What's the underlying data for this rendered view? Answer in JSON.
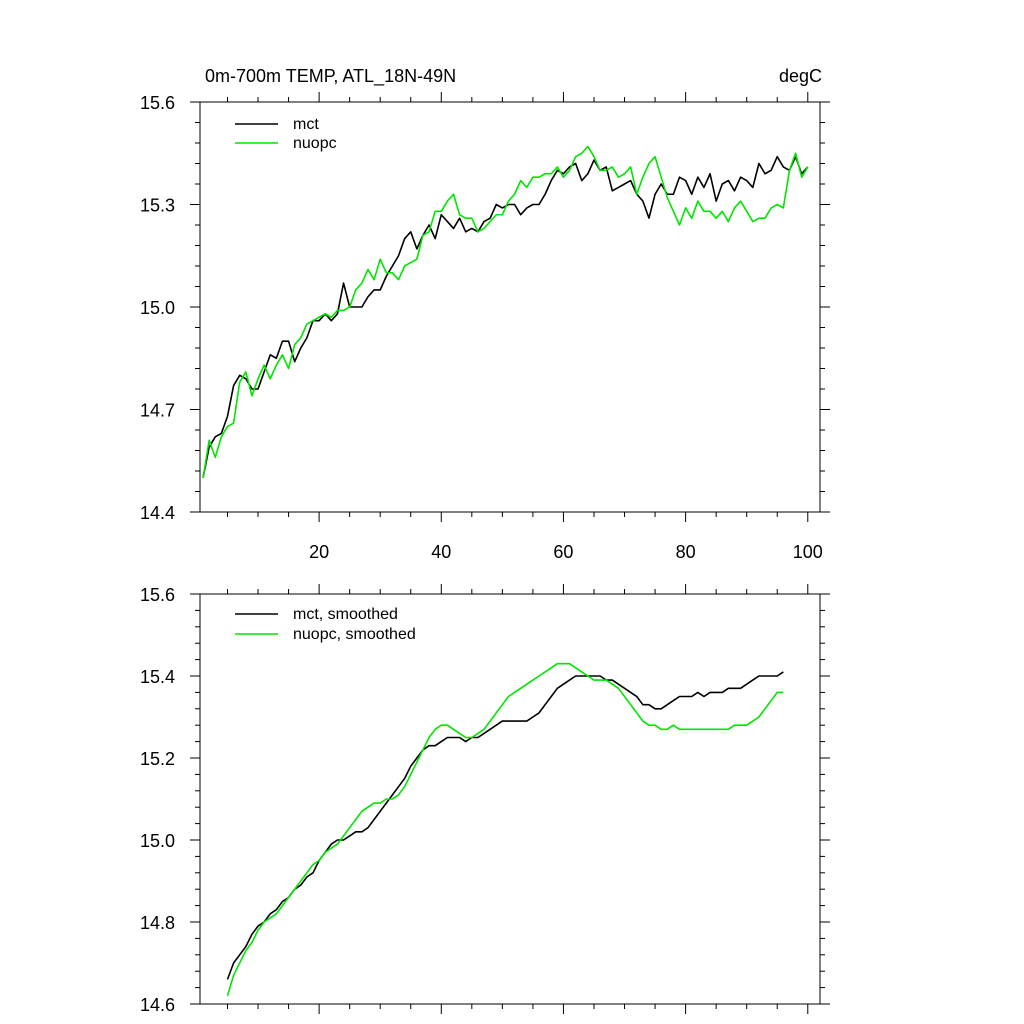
{
  "chart_data": [
    {
      "type": "line",
      "title": "0m-700m TEMP, ATL_18N-49N",
      "units": "degC",
      "xlabel": "",
      "ylabel": "",
      "xlim": [
        0.5,
        102
      ],
      "ylim": [
        14.4,
        15.6
      ],
      "xticks": [
        20,
        40,
        60,
        80,
        100
      ],
      "yticks": [
        14.4,
        14.7,
        15.0,
        15.3,
        15.6
      ],
      "ytick_labels": [
        "14.4",
        "14.7",
        "15.0",
        "15.3",
        "15.6"
      ],
      "legend_position": "top-left",
      "series": [
        {
          "name": "mct",
          "color": "#000000",
          "x": [
            1,
            2,
            3,
            4,
            5,
            6,
            7,
            8,
            9,
            10,
            11,
            12,
            13,
            14,
            15,
            16,
            17,
            18,
            19,
            20,
            21,
            22,
            23,
            24,
            25,
            26,
            27,
            28,
            29,
            30,
            31,
            32,
            33,
            34,
            35,
            36,
            37,
            38,
            39,
            40,
            41,
            42,
            43,
            44,
            45,
            46,
            47,
            48,
            49,
            50,
            51,
            52,
            53,
            54,
            55,
            56,
            57,
            58,
            59,
            60,
            61,
            62,
            63,
            64,
            65,
            66,
            67,
            68,
            69,
            70,
            71,
            72,
            73,
            74,
            75,
            76,
            77,
            78,
            79,
            80,
            81,
            82,
            83,
            84,
            85,
            86,
            87,
            88,
            89,
            90,
            91,
            92,
            93,
            94,
            95,
            96,
            97,
            98,
            99,
            100
          ],
          "values": [
            14.5,
            14.59,
            14.62,
            14.63,
            14.68,
            14.77,
            14.8,
            14.79,
            14.76,
            14.76,
            14.81,
            14.86,
            14.85,
            14.9,
            14.9,
            14.84,
            14.88,
            14.91,
            14.96,
            14.96,
            14.98,
            14.96,
            14.98,
            15.07,
            15.0,
            15.0,
            15.0,
            15.03,
            15.05,
            15.05,
            15.09,
            15.12,
            15.15,
            15.2,
            15.22,
            15.17,
            15.21,
            15.24,
            15.2,
            15.27,
            15.25,
            15.23,
            15.26,
            15.22,
            15.23,
            15.22,
            15.25,
            15.26,
            15.3,
            15.29,
            15.3,
            15.3,
            15.27,
            15.29,
            15.3,
            15.3,
            15.33,
            15.37,
            15.4,
            15.39,
            15.41,
            15.42,
            15.37,
            15.39,
            15.43,
            15.4,
            15.41,
            15.34,
            15.35,
            15.36,
            15.37,
            15.33,
            15.31,
            15.26,
            15.33,
            15.36,
            15.33,
            15.33,
            15.38,
            15.37,
            15.33,
            15.38,
            15.35,
            15.39,
            15.31,
            15.36,
            15.37,
            15.34,
            15.38,
            15.37,
            15.35,
            15.42,
            15.39,
            15.4,
            15.44,
            15.41,
            15.4,
            15.44,
            15.39,
            15.41
          ]
        },
        {
          "name": "nuopc",
          "color": "#00e600",
          "x": [
            1,
            2,
            3,
            4,
            5,
            6,
            7,
            8,
            9,
            10,
            11,
            12,
            13,
            14,
            15,
            16,
            17,
            18,
            19,
            20,
            21,
            22,
            23,
            24,
            25,
            26,
            27,
            28,
            29,
            30,
            31,
            32,
            33,
            34,
            35,
            36,
            37,
            38,
            39,
            40,
            41,
            42,
            43,
            44,
            45,
            46,
            47,
            48,
            49,
            50,
            51,
            52,
            53,
            54,
            55,
            56,
            57,
            58,
            59,
            60,
            61,
            62,
            63,
            64,
            65,
            66,
            67,
            68,
            69,
            70,
            71,
            72,
            73,
            74,
            75,
            76,
            77,
            78,
            79,
            80,
            81,
            82,
            83,
            84,
            85,
            86,
            87,
            88,
            89,
            90,
            91,
            92,
            93,
            94,
            95,
            96,
            97,
            98,
            99,
            100
          ],
          "values": [
            14.5,
            14.61,
            14.56,
            14.62,
            14.65,
            14.66,
            14.78,
            14.81,
            14.74,
            14.79,
            14.83,
            14.79,
            14.83,
            14.86,
            14.82,
            14.89,
            14.91,
            14.95,
            14.96,
            14.97,
            14.98,
            14.97,
            14.99,
            14.99,
            15.0,
            15.05,
            15.07,
            15.11,
            15.08,
            15.14,
            15.1,
            15.1,
            15.08,
            15.12,
            15.13,
            15.14,
            15.21,
            15.22,
            15.28,
            15.28,
            15.31,
            15.33,
            15.27,
            15.26,
            15.26,
            15.22,
            15.23,
            15.25,
            15.27,
            15.27,
            15.31,
            15.33,
            15.37,
            15.35,
            15.38,
            15.38,
            15.39,
            15.39,
            15.41,
            15.38,
            15.4,
            15.44,
            15.45,
            15.47,
            15.44,
            15.4,
            15.4,
            15.41,
            15.38,
            15.39,
            15.41,
            15.33,
            15.38,
            15.42,
            15.44,
            15.38,
            15.32,
            15.28,
            15.24,
            15.29,
            15.26,
            15.31,
            15.28,
            15.28,
            15.26,
            15.28,
            15.25,
            15.29,
            15.31,
            15.28,
            15.25,
            15.26,
            15.26,
            15.29,
            15.3,
            15.29,
            15.4,
            15.45,
            15.38,
            15.41
          ]
        }
      ]
    },
    {
      "type": "line",
      "title": "",
      "xlabel": "",
      "ylabel": "",
      "xlim": [
        0.5,
        102
      ],
      "ylim": [
        14.6,
        15.6
      ],
      "xticks": [
        20,
        40,
        60,
        80,
        100
      ],
      "yticks": [
        14.6,
        14.8,
        15.0,
        15.2,
        15.4,
        15.6
      ],
      "ytick_labels": [
        "14.6",
        "14.8",
        "15.0",
        "15.2",
        "15.4",
        "15.6"
      ],
      "legend_position": "top-left",
      "series": [
        {
          "name": "mct, smoothed",
          "color": "#000000",
          "x": [
            5,
            6,
            7,
            8,
            9,
            10,
            11,
            12,
            13,
            14,
            15,
            16,
            17,
            18,
            19,
            20,
            21,
            22,
            23,
            24,
            25,
            26,
            27,
            28,
            29,
            30,
            31,
            32,
            33,
            34,
            35,
            36,
            37,
            38,
            39,
            40,
            41,
            42,
            43,
            44,
            45,
            46,
            47,
            48,
            49,
            50,
            51,
            52,
            53,
            54,
            55,
            56,
            57,
            58,
            59,
            60,
            61,
            62,
            63,
            64,
            65,
            66,
            67,
            68,
            69,
            70,
            71,
            72,
            73,
            74,
            75,
            76,
            77,
            78,
            79,
            80,
            81,
            82,
            83,
            84,
            85,
            86,
            87,
            88,
            89,
            90,
            91,
            92,
            93,
            94,
            95,
            96
          ],
          "values": [
            14.66,
            14.7,
            14.72,
            14.74,
            14.77,
            14.79,
            14.8,
            14.82,
            14.83,
            14.85,
            14.86,
            14.88,
            14.89,
            14.91,
            14.92,
            14.95,
            14.97,
            14.99,
            15.0,
            15.0,
            15.01,
            15.02,
            15.02,
            15.03,
            15.05,
            15.07,
            15.09,
            15.11,
            15.13,
            15.15,
            15.18,
            15.2,
            15.22,
            15.23,
            15.23,
            15.24,
            15.25,
            15.25,
            15.25,
            15.24,
            15.25,
            15.25,
            15.26,
            15.27,
            15.28,
            15.29,
            15.29,
            15.29,
            15.29,
            15.29,
            15.3,
            15.31,
            15.33,
            15.35,
            15.37,
            15.38,
            15.39,
            15.4,
            15.4,
            15.4,
            15.4,
            15.4,
            15.39,
            15.39,
            15.38,
            15.37,
            15.36,
            15.35,
            15.33,
            15.33,
            15.32,
            15.32,
            15.33,
            15.34,
            15.35,
            15.35,
            15.35,
            15.36,
            15.35,
            15.36,
            15.36,
            15.36,
            15.37,
            15.37,
            15.37,
            15.38,
            15.39,
            15.4,
            15.4,
            15.4,
            15.4,
            15.41
          ]
        },
        {
          "name": "nuopc, smoothed",
          "color": "#00e600",
          "x": [
            5,
            6,
            7,
            8,
            9,
            10,
            11,
            12,
            13,
            14,
            15,
            16,
            17,
            18,
            19,
            20,
            21,
            22,
            23,
            24,
            25,
            26,
            27,
            28,
            29,
            30,
            31,
            32,
            33,
            34,
            35,
            36,
            37,
            38,
            39,
            40,
            41,
            42,
            43,
            44,
            45,
            46,
            47,
            48,
            49,
            50,
            51,
            52,
            53,
            54,
            55,
            56,
            57,
            58,
            59,
            60,
            61,
            62,
            63,
            64,
            65,
            66,
            67,
            68,
            69,
            70,
            71,
            72,
            73,
            74,
            75,
            76,
            77,
            78,
            79,
            80,
            81,
            82,
            83,
            84,
            85,
            86,
            87,
            88,
            89,
            90,
            91,
            92,
            93,
            94,
            95,
            96
          ],
          "values": [
            14.62,
            14.67,
            14.7,
            14.73,
            14.75,
            14.78,
            14.8,
            14.81,
            14.82,
            14.84,
            14.86,
            14.88,
            14.9,
            14.92,
            14.94,
            14.95,
            14.97,
            14.98,
            14.99,
            15.01,
            15.03,
            15.05,
            15.07,
            15.08,
            15.09,
            15.09,
            15.1,
            15.1,
            15.11,
            15.13,
            15.16,
            15.19,
            15.22,
            15.25,
            15.27,
            15.28,
            15.28,
            15.27,
            15.26,
            15.25,
            15.25,
            15.26,
            15.27,
            15.29,
            15.31,
            15.33,
            15.35,
            15.36,
            15.37,
            15.38,
            15.39,
            15.4,
            15.41,
            15.42,
            15.43,
            15.43,
            15.43,
            15.42,
            15.41,
            15.4,
            15.39,
            15.39,
            15.39,
            15.38,
            15.37,
            15.35,
            15.33,
            15.31,
            15.29,
            15.28,
            15.28,
            15.27,
            15.27,
            15.28,
            15.27,
            15.27,
            15.27,
            15.27,
            15.27,
            15.27,
            15.27,
            15.27,
            15.27,
            15.28,
            15.28,
            15.28,
            15.29,
            15.3,
            15.32,
            15.34,
            15.36,
            15.36
          ]
        }
      ]
    }
  ]
}
